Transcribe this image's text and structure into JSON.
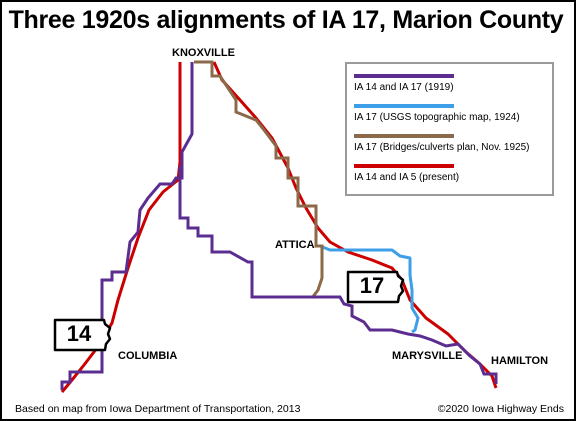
{
  "map": {
    "title": "Three 1920s alignments of IA 17, Marion County",
    "towns": {
      "knoxville": "KNOXVILLE",
      "attica": "ATTICA",
      "columbia": "COLUMBIA",
      "marysville": "MARYSVILLE",
      "hamilton": "HAMILTON"
    },
    "shields": {
      "ia17": "17",
      "ia14": "14"
    },
    "legend": [
      {
        "label": "IA 14 and IA 17 (1919)",
        "color": "#5b2d91"
      },
      {
        "label": "IA 17 (USGS topographic map, 1924)",
        "color": "#3d9fe8"
      },
      {
        "label": "IA 17 (Bridges/culverts plan, Nov. 1925)",
        "color": "#8b6a4a"
      },
      {
        "label": "IA 14 and IA 5 (present)",
        "color": "#cc0000"
      }
    ],
    "source_credit": "Based on map from Iowa Department of Transportation, 2013",
    "copyright": "©2020 Iowa Highway Ends"
  }
}
